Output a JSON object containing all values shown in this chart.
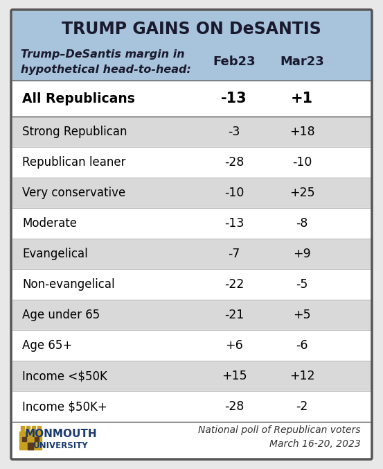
{
  "title": "TRUMP GAINS ON DeSANTIS",
  "subtitle_line1": "Trump–DeSantis margin in",
  "subtitle_line2": "hypothetical head-to-head:",
  "col_headers": [
    "Feb23",
    "Mar23"
  ],
  "highlight_row": {
    "label": "All Republicans",
    "feb": "-13",
    "mar": "+1"
  },
  "rows": [
    {
      "label": "Strong Republican",
      "feb": "-3",
      "mar": "+18"
    },
    {
      "label": "Republican leaner",
      "feb": "-28",
      "mar": "-10"
    },
    {
      "label": "Very conservative",
      "feb": "-10",
      "mar": "+25"
    },
    {
      "label": "Moderate",
      "feb": "-13",
      "mar": "-8"
    },
    {
      "label": "Evangelical",
      "feb": "-7",
      "mar": "+9"
    },
    {
      "label": "Non-evangelical",
      "feb": "-22",
      "mar": "-5"
    },
    {
      "label": "Age under 65",
      "feb": "-21",
      "mar": "+5"
    },
    {
      "label": "Age 65+",
      "feb": "+6",
      "mar": "-6"
    },
    {
      "label": "Income <$50K",
      "feb": "+15",
      "mar": "+12"
    },
    {
      "label": "Income $50K+",
      "feb": "-28",
      "mar": "-2"
    }
  ],
  "footer_note": "National poll of Republican voters\nMarch 16-20, 2023",
  "header_bg": "#a8c4dc",
  "highlight_bg": "#ffffff",
  "row_bg_odd": "#d9d9d9",
  "row_bg_even": "#ffffff",
  "border_color": "#555555",
  "title_color": "#1a1a2e",
  "outer_border_color": "#888888"
}
